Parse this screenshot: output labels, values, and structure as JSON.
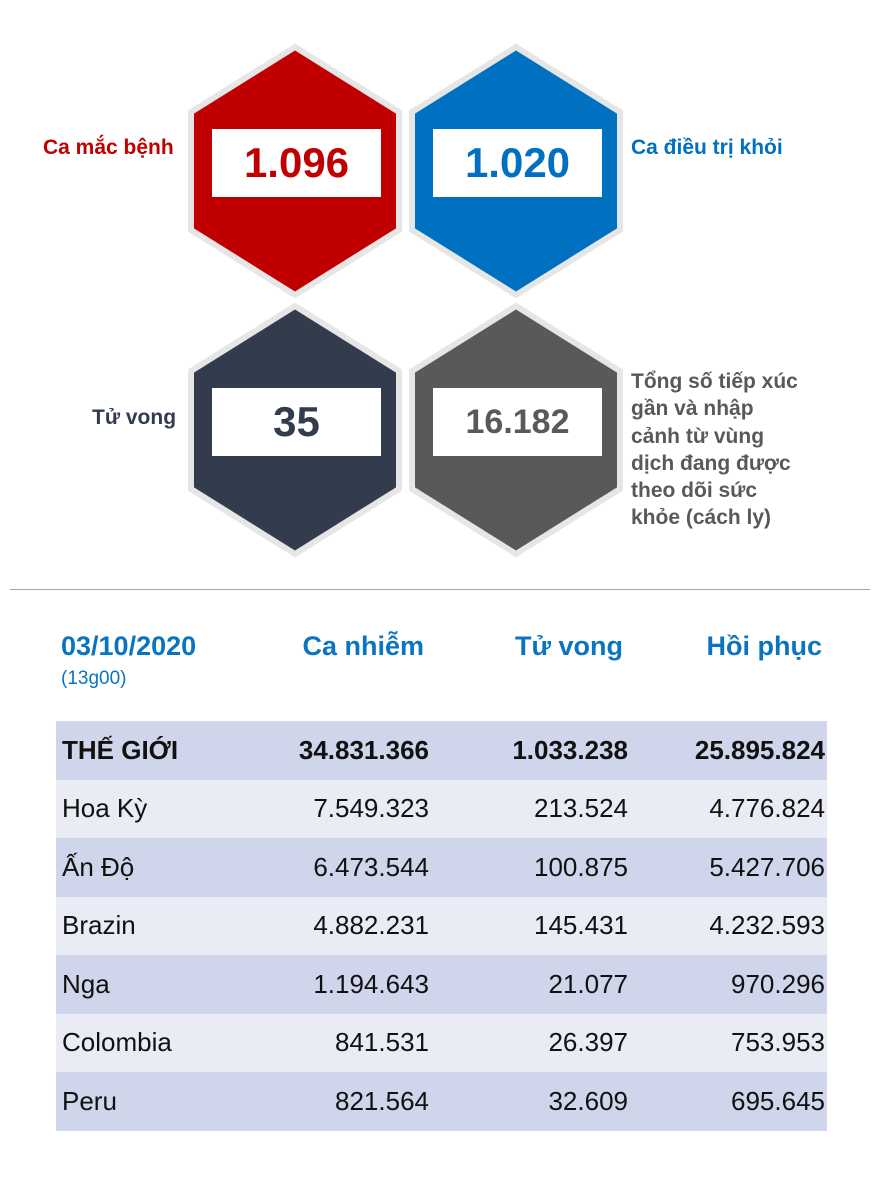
{
  "stats": {
    "cases": {
      "label": "Ca mắc bệnh",
      "value": "1.096",
      "color": "#c00000"
    },
    "recovered": {
      "label": "Ca điều trị khỏi",
      "value": "1.020",
      "color": "#0070c0"
    },
    "deaths": {
      "label": "Tử vong",
      "value": "35",
      "color": "#323c4d"
    },
    "monitored": {
      "label_lines": [
        "Tổng số tiếp xúc",
        "gần và nhập",
        "cảnh từ vùng",
        "dịch đang được",
        "theo dõi sức",
        "khỏe (cách ly)"
      ],
      "value": "16.182",
      "color": "#595959"
    }
  },
  "table": {
    "date": "03/10/2020",
    "time": "(13g00)",
    "headers": [
      "Ca nhiễm",
      "Tử vong",
      "Hồi phục"
    ],
    "rows": [
      {
        "name": "THẾ GIỚI",
        "cases": "34.831.366",
        "deaths": "1.033.238",
        "recovered": "25.895.824"
      },
      {
        "name": "Hoa Kỳ",
        "cases": "7.549.323",
        "deaths": "213.524",
        "recovered": "4.776.824"
      },
      {
        "name": "Ấn Độ",
        "cases": "6.473.544",
        "deaths": "100.875",
        "recovered": "5.427.706"
      },
      {
        "name": "Brazin",
        "cases": "4.882.231",
        "deaths": "145.431",
        "recovered": "4.232.593"
      },
      {
        "name": "Nga",
        "cases": "1.194.643",
        "deaths": "21.077",
        "recovered": "970.296"
      },
      {
        "name": "Colombia",
        "cases": "841.531",
        "deaths": "26.397",
        "recovered": "753.953"
      },
      {
        "name": "Peru",
        "cases": "821.564",
        "deaths": "32.609",
        "recovered": "695.645"
      }
    ]
  }
}
